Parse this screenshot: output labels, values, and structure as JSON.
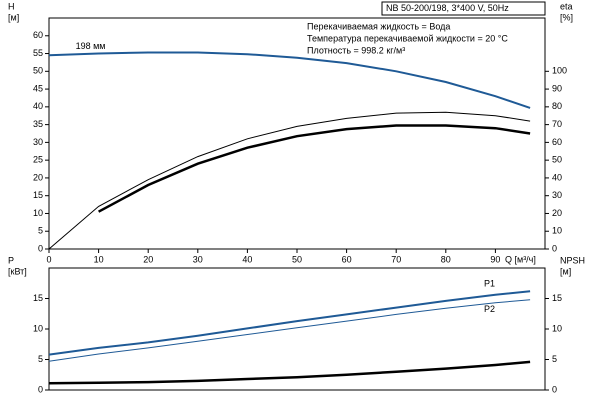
{
  "chart_data": [
    {
      "type": "line",
      "title": "NB 50-200/198, 3*400 V, 50Hz",
      "annotations": [
        "Перекачиваемая жидкость = Вода",
        "Температура перекачиваемой жидкости = 20 °C",
        "Плотность = 998.2 кг/м³"
      ],
      "ylabel": "H",
      "ylabel_unit": "[м]",
      "y2label": "eta",
      "y2label_unit": "[%]",
      "xlabel": "Q [м³/ч]",
      "x": [
        0,
        10,
        20,
        30,
        40,
        50,
        60,
        70,
        80,
        90,
        97
      ],
      "xlim": [
        0,
        100
      ],
      "xticks": [
        0,
        10,
        20,
        30,
        40,
        50,
        60,
        70,
        80,
        90
      ],
      "ylim": [
        0,
        65
      ],
      "yticks": [
        0,
        5,
        10,
        15,
        20,
        25,
        30,
        35,
        40,
        45,
        50,
        55,
        60
      ],
      "y2lim": [
        0,
        130
      ],
      "y2ticks": [
        0,
        10,
        20,
        30,
        40,
        50,
        60,
        70,
        80,
        90,
        100
      ],
      "series": [
        {
          "name": "198 мм",
          "color": "#1f5a96",
          "line_width": 2,
          "values": [
            54.5,
            55,
            55.3,
            55.3,
            54.8,
            53.8,
            52.3,
            50,
            47,
            43,
            39.7
          ]
        },
        {
          "color": "#000000",
          "line_width": 1,
          "axis": "y2",
          "values": [
            0,
            24,
            39,
            52,
            62,
            69,
            73.5,
            76.5,
            77,
            75,
            72
          ]
        },
        {
          "color": "#000000",
          "line_width": 2.5,
          "axis": "y2",
          "values": [
            null,
            21,
            36,
            48,
            57,
            63.5,
            67.5,
            69.5,
            69.5,
            68,
            65
          ]
        }
      ]
    },
    {
      "type": "line",
      "ylabel": "P",
      "ylabel_unit": "[кВт]",
      "y2label": "NPSH",
      "y2label_unit": "[м]",
      "x": [
        0,
        10,
        20,
        30,
        40,
        50,
        60,
        70,
        80,
        90,
        97
      ],
      "xlim": [
        0,
        100
      ],
      "ylim": [
        0,
        20
      ],
      "yticks": [
        0,
        5,
        10,
        15
      ],
      "y2lim": [
        0,
        20
      ],
      "y2ticks": [
        0,
        5,
        10,
        15
      ],
      "series": [
        {
          "name": "P1",
          "color": "#1f5a96",
          "line_width": 2,
          "values": [
            5.8,
            6.9,
            7.8,
            8.9,
            10.1,
            11.3,
            12.4,
            13.5,
            14.6,
            15.6,
            16.2
          ]
        },
        {
          "name": "P2",
          "color": "#1f5a96",
          "line_width": 1,
          "values": [
            4.7,
            5.9,
            6.9,
            8,
            9.1,
            10.2,
            11.3,
            12.4,
            13.4,
            14.3,
            14.8
          ]
        },
        {
          "color": "#000000",
          "line_width": 2.5,
          "axis": "y2",
          "values": [
            1.1,
            1.2,
            1.3,
            1.5,
            1.8,
            2.1,
            2.5,
            3,
            3.5,
            4.1,
            4.6
          ]
        }
      ]
    }
  ]
}
